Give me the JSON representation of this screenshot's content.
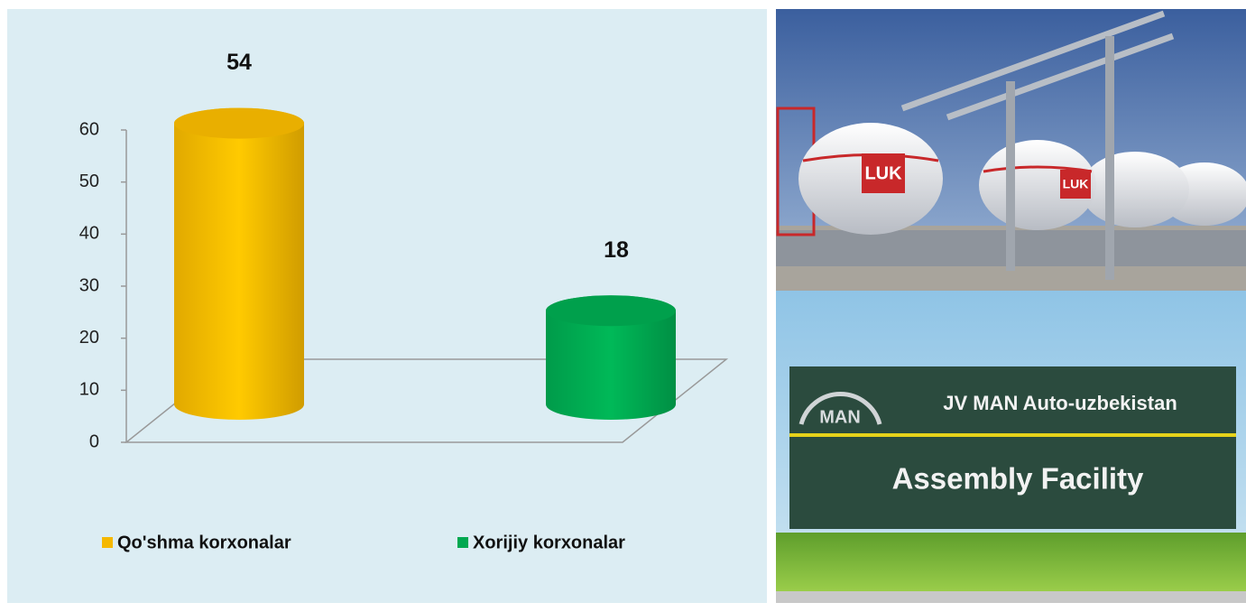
{
  "chart_data": {
    "type": "cylinder",
    "series": [
      {
        "name": "Qo'shma korxonalar",
        "color": "#f5b800",
        "values": [
          54
        ]
      },
      {
        "name": "Xorijiy korxonalar",
        "color": "#00a850",
        "values": [
          18
        ]
      }
    ],
    "ylim": [
      0,
      60
    ],
    "yticks": [
      0,
      10,
      20,
      30,
      40,
      50,
      60
    ],
    "grid": false,
    "legend": "bottom"
  },
  "photos": {
    "top": {
      "logo": "LUK"
    },
    "bottom": {
      "logo": "MAN",
      "title": "JV MAN Auto-uzbekistan",
      "subtitle": "Assembly Facility"
    }
  }
}
